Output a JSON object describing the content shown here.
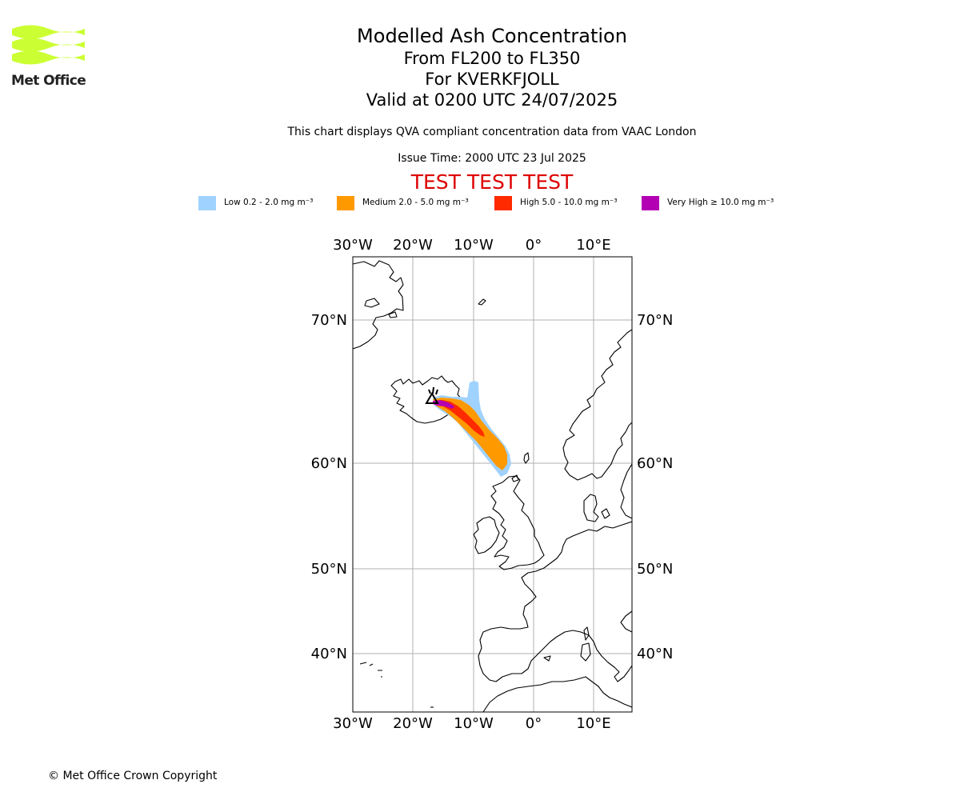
{
  "logo": {
    "text": "Met Office",
    "color": "#ccff33"
  },
  "header": {
    "title": "Modelled Ash Concentration",
    "levels": "From FL200 to FL350",
    "volcano": "For KVERKFJOLL",
    "valid": "Valid at 0200 UTC 24/07/2025",
    "description": "This chart displays QVA compliant concentration data from VAAC London",
    "issue_time": "Issue Time: 2000 UTC 23 Jul 2025",
    "test_banner": "TEST TEST TEST",
    "test_color": "#dd0000"
  },
  "legend": [
    {
      "label": "Low 0.2 - 2.0 mg m⁻³",
      "color": "#a0d2ff"
    },
    {
      "label": "Medium 2.0 - 5.0 mg m⁻³",
      "color": "#ff9900"
    },
    {
      "label": "High 5.0 - 10.0 mg m⁻³",
      "color": "#ff2a00"
    },
    {
      "label": "Very High ≥ 10.0 mg m⁻³",
      "color": "#b300b3"
    }
  ],
  "map": {
    "lon_ticks": [
      "30°W",
      "20°W",
      "10°W",
      "0°",
      "10°E"
    ],
    "lat_ticks": [
      "70°N",
      "60°N",
      "50°N",
      "40°N"
    ],
    "gridlines": true,
    "volcano_marker": "triangle",
    "volcano_name": "KVERKFJOLL"
  },
  "footer": {
    "copyright": "© Met Office Crown Copyright"
  }
}
